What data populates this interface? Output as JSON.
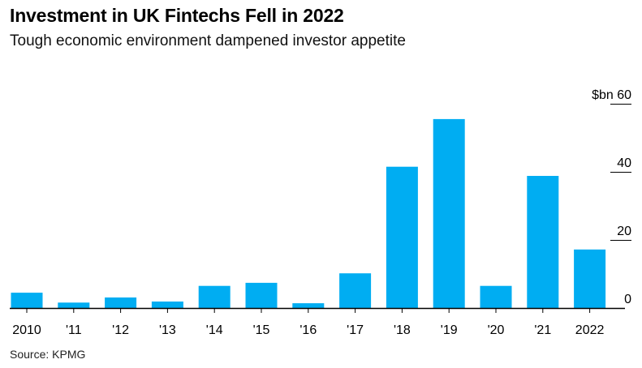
{
  "title": "Investment in UK Fintechs Fell in 2022",
  "subtitle": "Tough economic environment dampened investor appetite",
  "source": "Source: KPMG",
  "colors": {
    "bar": "#00adf2",
    "axis": "#000000",
    "text": "#000000"
  },
  "chart_data": {
    "type": "bar",
    "categories": [
      "2010",
      "'11",
      "'12",
      "'13",
      "'14",
      "'15",
      "'16",
      "'17",
      "'18",
      "'19",
      "'20",
      "'21",
      "2022"
    ],
    "values": [
      4.5,
      1.6,
      3.1,
      1.9,
      6.5,
      7.4,
      1.4,
      10.2,
      41.5,
      55.5,
      6.5,
      38.8,
      17.2
    ],
    "ylim": [
      0,
      60
    ],
    "yticks": [
      0,
      20,
      40,
      60
    ],
    "ytick_labels": [
      "0",
      "20",
      "40",
      "60"
    ],
    "yunit": "$bn",
    "grid": false,
    "axis_side": "right"
  }
}
